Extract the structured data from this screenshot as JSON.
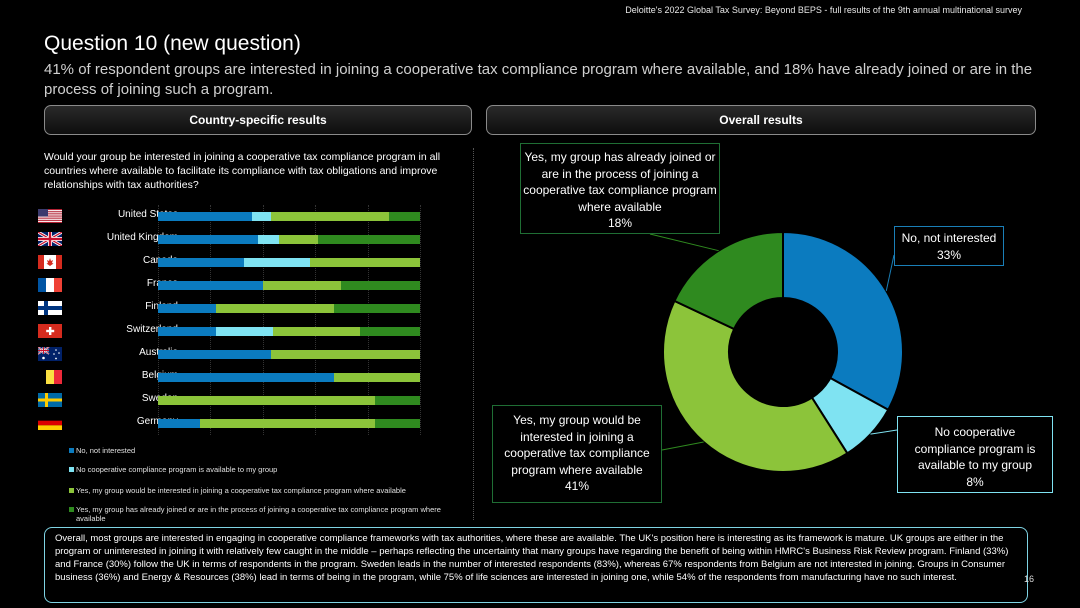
{
  "header_note": "Deloitte's 2022 Global Tax Survey: Beyond BEPS  - full results of the 9th annual multinational survey",
  "title": "Question 10 (new question)",
  "subtitle": "41% of respondent groups are interested in joining a cooperative tax compliance program where available, and 18% have already joined or are in the process of joining such a program.",
  "left_panel_label": "Country-specific results",
  "right_panel_label": "Overall results",
  "question": "Would your group be interested in joining a cooperative tax compliance program in all countries where available to facilitate its compliance with tax obligations and improve relationships with tax authorities?",
  "colors": {
    "no_interest": "#0b7bbf",
    "no_program": "#7fe3f2",
    "interested": "#8cc43a",
    "joined": "#2f8a1f"
  },
  "chart_data": [
    {
      "type": "bar",
      "orientation": "horizontal",
      "stacked": true,
      "categories": [
        "United States",
        "United Kingdom",
        "Canada",
        "France",
        "Finland",
        "Switzerland",
        "Australia",
        "Belgium",
        "Sweden",
        "Germany"
      ],
      "flags": [
        "flag-us-icon",
        "flag-uk-icon",
        "flag-canada-icon",
        "flag-france-icon",
        "flag-finland-icon",
        "flag-switzerland-icon",
        "flag-australia-icon",
        "flag-belgium-icon",
        "flag-sweden-icon",
        "flag-germany-icon"
      ],
      "xlim": [
        0,
        100
      ],
      "series": [
        {
          "name": "No, not interested",
          "values": [
            36,
            38,
            33,
            40,
            22,
            22,
            43,
            67,
            0,
            16
          ]
        },
        {
          "name": "No cooperative compliance program is available to my group",
          "values": [
            7,
            8,
            25,
            0,
            0,
            22,
            0,
            0,
            0,
            0
          ]
        },
        {
          "name": "Yes, my group would be interested in joining a cooperative tax compliance program where available",
          "values": [
            45,
            15,
            42,
            30,
            45,
            33,
            57,
            33,
            83,
            67
          ]
        },
        {
          "name": "Yes, my group has already joined or are in the process of joining a cooperative tax compliance program where available",
          "values": [
            12,
            39,
            0,
            30,
            33,
            23,
            0,
            0,
            17,
            17
          ]
        }
      ]
    },
    {
      "type": "pie",
      "donut": true,
      "categories": [
        "No, not interested",
        "No cooperative compliance program is available to my group",
        "Yes, my group would be interested in joining a cooperative tax compliance program where available",
        "Yes, my group has already joined or are in the process of joining a cooperative tax compliance program where available"
      ],
      "values": [
        33,
        8,
        41,
        18
      ],
      "labels": [
        {
          "text": "No, not interested",
          "pct": "33%"
        },
        {
          "text": "No cooperative compliance program is available to my group",
          "pct": "8%"
        },
        {
          "text": "Yes, my group would be interested in joining a cooperative tax compliance program where available",
          "pct": "41%"
        },
        {
          "text": "Yes, my group has already joined or are in the process of joining a cooperative tax compliance program where available",
          "pct": "18%"
        }
      ]
    }
  ],
  "footer_text": "Overall, most groups are interested in engaging in cooperative compliance frameworks with tax authorities, where these are available. The UK's position here is interesting as its framework is mature. UK groups are either in the program or uninterested in joining it with relatively few caught in the middle – perhaps reflecting the uncertainty that many groups have regarding the benefit of being within HMRC's Business Risk Review program. Finland (33%) and France (30%) follow the UK in terms of respondents in the program. Sweden leads in the number of interested respondents (83%), whereas 67% respondents from Belgium are not interested in joining. Groups in Consumer business (36%) and Energy & Resources (38%) lead in terms of being in the program, while 75% of life sciences are interested in joining one, while 54% of the respondents from manufacturing have no such interest.",
  "page_number": "16"
}
